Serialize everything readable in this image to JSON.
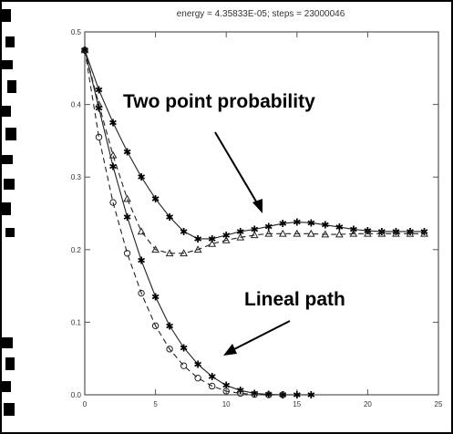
{
  "header_text": "energy =   4.35833E-05; steps =    23000046",
  "chart_data": {
    "type": "line",
    "title": "energy =   4.35833E-05; steps =    23000046",
    "xlabel": "",
    "ylabel": "",
    "xlim": [
      0,
      25
    ],
    "ylim": [
      0,
      0.5
    ],
    "xticks": [
      0,
      5,
      10,
      15,
      20,
      25
    ],
    "yticks": [
      0.0,
      0.1,
      0.2,
      0.3,
      0.4,
      0.5
    ],
    "ytick_labels": [
      "0.0",
      "0.1",
      "0.2",
      "0.3",
      "0.4",
      "0.5"
    ],
    "grid": false,
    "series": [
      {
        "marker": "star",
        "line": "solid",
        "x": [
          0,
          1,
          2,
          3,
          4,
          5,
          6,
          7,
          8,
          9,
          10,
          11,
          12,
          13,
          14,
          15,
          16,
          17,
          18,
          19,
          20,
          21,
          22,
          23,
          24
        ],
        "y": [
          0.475,
          0.42,
          0.375,
          0.335,
          0.3,
          0.27,
          0.245,
          0.225,
          0.215,
          0.215,
          0.22,
          0.225,
          0.228,
          0.232,
          0.236,
          0.238,
          0.237,
          0.234,
          0.231,
          0.228,
          0.226,
          0.225,
          0.225,
          0.225,
          0.225
        ]
      },
      {
        "marker": "triangle",
        "line": "dashed",
        "x": [
          0,
          1,
          2,
          3,
          4,
          5,
          6,
          7,
          8,
          9,
          10,
          11,
          12,
          13,
          14,
          15,
          16,
          17,
          18,
          19,
          20,
          21,
          22,
          23,
          24
        ],
        "y": [
          0.475,
          0.4,
          0.33,
          0.27,
          0.225,
          0.2,
          0.195,
          0.195,
          0.2,
          0.208,
          0.213,
          0.217,
          0.22,
          0.222,
          0.222,
          0.222,
          0.222,
          0.221,
          0.221,
          0.222,
          0.222,
          0.222,
          0.222,
          0.222,
          0.222
        ]
      },
      {
        "marker": "star",
        "line": "solid",
        "x": [
          0,
          1,
          2,
          3,
          4,
          5,
          6,
          7,
          8,
          9,
          10,
          11,
          12,
          13,
          14,
          15,
          16
        ],
        "y": [
          0.475,
          0.395,
          0.315,
          0.245,
          0.185,
          0.135,
          0.095,
          0.065,
          0.042,
          0.025,
          0.013,
          0.006,
          0.002,
          0.0005,
          0,
          0,
          0
        ]
      },
      {
        "marker": "circle",
        "line": "dashed",
        "x": [
          0,
          1,
          2,
          3,
          4,
          5,
          6,
          7,
          8,
          9,
          10,
          11,
          12,
          13,
          14
        ],
        "y": [
          0.475,
          0.355,
          0.265,
          0.195,
          0.14,
          0.095,
          0.063,
          0.04,
          0.023,
          0.012,
          0.005,
          0.002,
          0.0005,
          0,
          0
        ]
      }
    ],
    "annotations": [
      "Two point probability",
      "Lineal path"
    ]
  }
}
